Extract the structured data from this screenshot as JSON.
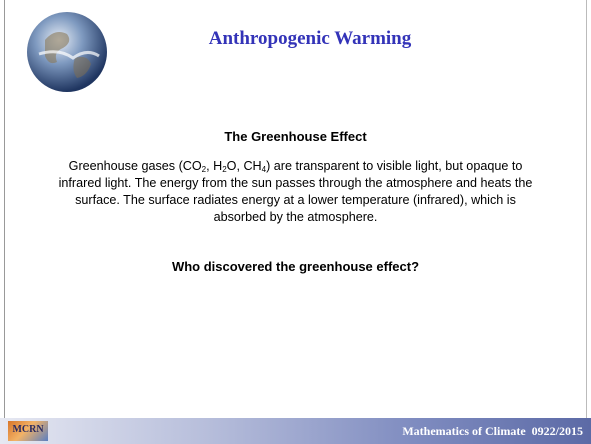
{
  "slide": {
    "title": "Anthropogenic Warming",
    "subtitle": "The Greenhouse Effect",
    "body": [
      {
        "text": "Greenhouse gases (CO"
      },
      {
        "text": "2",
        "subscript": true
      },
      {
        "text": ", H"
      },
      {
        "text": "2",
        "subscript": true
      },
      {
        "text": "O, CH"
      },
      {
        "text": "4",
        "subscript": true
      },
      {
        "text": ") are transparent to visible light, but opaque to infrared light. The energy from the sun passes through the atmosphere and heats the surface. The surface radiates energy at a lower temperature (infrared), which is absorbed by the atmosphere."
      }
    ],
    "question": "Who discovered the greenhouse effect?",
    "footer": "Mathematics of Climate  0922/2015",
    "logo_text": "MCRN"
  }
}
